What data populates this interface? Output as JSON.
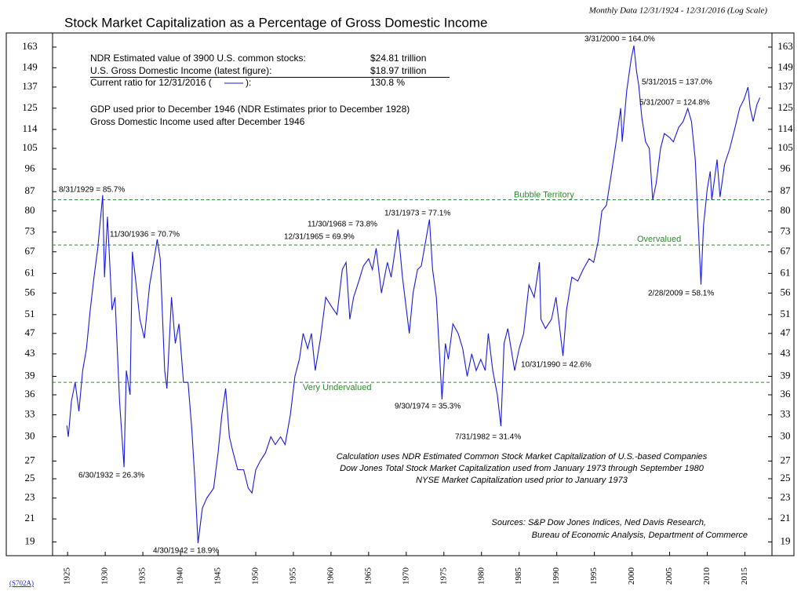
{
  "chart_data": {
    "type": "line",
    "title": "Stock Market Capitalization as a Percentage of Gross Domestic Income",
    "subtitle": "Monthly Data 12/31/1924 - 12/31/2016 (Log Scale)",
    "code": "(S702A)",
    "log_scale": true,
    "xlim": [
      1923,
      2018.6
    ],
    "xticks": [
      1925,
      1930,
      1935,
      1940,
      1945,
      1950,
      1955,
      1960,
      1965,
      1970,
      1975,
      1980,
      1985,
      1990,
      1995,
      2000,
      2005,
      2010,
      2015
    ],
    "ylim": [
      17.9,
      173.3
    ],
    "yticks": [
      163,
      149,
      137,
      125,
      114,
      105,
      96,
      87,
      80,
      73,
      67,
      61,
      56,
      51,
      47,
      43,
      39,
      36,
      33,
      30,
      27,
      25,
      23,
      21,
      19
    ],
    "x": [
      1924.9,
      1925.1,
      1925.5,
      1926,
      1926.5,
      1927,
      1927.5,
      1928,
      1928.5,
      1929.0,
      1929.66,
      1929.9,
      1930.3,
      1930.9,
      1931.3,
      1931.9,
      1932.5,
      1932.8,
      1933.3,
      1933.6,
      1934.0,
      1934.6,
      1935.2,
      1935.9,
      1936.5,
      1936.91,
      1937.3,
      1937.9,
      1938.2,
      1938.8,
      1939.3,
      1939.8,
      1940.4,
      1941.0,
      1941.5,
      1941.9,
      1942.33,
      1942.9,
      1943.5,
      1944.4,
      1945.0,
      1945.5,
      1946.0,
      1946.5,
      1947.0,
      1947.6,
      1948.4,
      1949.0,
      1949.5,
      1950.0,
      1950.6,
      1951.3,
      1952.0,
      1952.6,
      1953.3,
      1953.9,
      1954.6,
      1955.2,
      1955.8,
      1956.3,
      1956.9,
      1957.4,
      1957.9,
      1958.6,
      1959.3,
      1960.0,
      1960.8,
      1961.5,
      1962.0,
      1962.5,
      1963.0,
      1963.7,
      1964.3,
      1965.0,
      1965.5,
      1966.0,
      1966.7,
      1967.5,
      1968.0,
      1968.91,
      1969.5,
      1970.4,
      1970.9,
      1971.5,
      1972.0,
      1973.08,
      1973.5,
      1974.0,
      1974.75,
      1975.2,
      1975.6,
      1976.2,
      1976.9,
      1977.5,
      1978.1,
      1978.7,
      1979.3,
      1979.9,
      1980.5,
      1980.9,
      1981.5,
      1982.1,
      1982.58,
      1983.0,
      1983.5,
      1984.4,
      1985.0,
      1985.6,
      1986.3,
      1987.0,
      1987.7,
      1987.9,
      1988.5,
      1989.3,
      1989.9,
      1990.83,
      1991.3,
      1992.0,
      1992.8,
      1993.5,
      1994.3,
      1994.9,
      1995.5,
      1996.0,
      1996.6,
      1997.3,
      1997.9,
      1998.5,
      1998.7,
      1999.3,
      1999.9,
      2000.25,
      2000.6,
      2000.9,
      2001.3,
      2001.8,
      2002.3,
      2002.75,
      2003.2,
      2003.8,
      2004.3,
      2005.0,
      2005.5,
      2006.2,
      2006.8,
      2007.41,
      2007.9,
      2008.4,
      2008.9,
      2009.16,
      2009.5,
      2010.0,
      2010.4,
      2010.6,
      2011.3,
      2011.7,
      2012.3,
      2013.0,
      2013.7,
      2014.3,
      2014.9,
      2015.41,
      2015.7,
      2016.1,
      2016.6,
      2016.99
    ],
    "series": [
      {
        "color": "#1a1adb",
        "values": [
          31.5,
          30,
          35,
          38,
          33.5,
          40,
          44,
          52,
          60,
          68,
          85.7,
          60,
          78,
          52,
          55,
          35,
          26.3,
          40,
          36,
          67,
          60,
          50,
          46,
          58,
          65,
          70.7,
          65,
          40,
          37,
          55,
          45,
          49,
          38,
          38,
          31,
          25,
          18.9,
          22,
          23,
          24,
          28,
          33,
          37,
          30,
          28,
          26,
          26,
          24,
          23.5,
          26,
          27,
          28,
          30,
          29,
          30,
          29,
          33,
          39,
          42,
          47,
          44,
          47,
          40,
          46,
          55,
          53,
          51,
          62,
          64,
          50,
          55,
          59,
          63,
          65,
          62,
          68,
          56,
          64,
          60,
          73.8,
          60,
          47,
          56,
          62,
          63,
          77.1,
          62,
          55,
          35.3,
          45,
          42,
          49,
          47,
          44,
          39,
          43,
          40,
          42,
          40,
          47,
          40,
          36,
          31.4,
          45,
          48,
          40,
          44,
          47,
          58,
          55,
          64,
          50,
          48,
          50,
          55,
          42.6,
          52,
          60,
          59,
          62,
          65,
          64,
          70,
          80,
          82,
          95,
          108,
          125,
          108,
          135,
          155,
          164.0,
          147,
          138,
          120,
          108,
          105,
          84,
          90,
          105,
          112,
          110,
          108,
          115,
          118,
          124.8,
          118,
          100,
          70,
          58.1,
          75,
          88,
          95,
          84,
          100,
          85,
          98,
          105,
          115,
          125,
          130,
          137.0,
          125,
          118,
          127,
          130.8
        ]
      }
    ],
    "reference_lines": [
      {
        "value": 84,
        "label": "Bubble Territory",
        "color": "#2e8b2e"
      },
      {
        "value": 69,
        "label": "Overvalued",
        "color": "#2e8b2e"
      },
      {
        "value": 38,
        "label": "Very Undervalued",
        "color": "#2e8b2e"
      }
    ],
    "annotations": [
      "3/31/2000 = 164.0%",
      "5/31/2015 = 137.0%",
      "5/31/2007 = 124.8%",
      "8/31/1929 = 85.7%",
      "11/30/1936 = 70.7%",
      "11/30/1968 = 73.8%",
      "12/31/1965 = 69.9%",
      "1/31/1973 = 77.1%",
      "2/28/2009 = 58.1%",
      "10/31/1990 = 42.6%",
      "9/30/1974 = 35.3%",
      "7/31/1982 = 31.4%",
      "6/30/1932 = 26.3%",
      "4/30/1942 = 18.9%"
    ],
    "info": {
      "rows": [
        [
          "NDR Estimated value of 3900 U.S. common stocks:",
          "$24.81 trillion"
        ],
        [
          "U.S. Gross Domestic Income (latest figure):",
          "$18.97 trillion"
        ]
      ],
      "current_before": "Current ratio for 12/31/2016 (",
      "current_after": "):",
      "current_value": "130.8 %",
      "notes": [
        "GDP used prior to December 1946 (NDR Estimates prior to December 1928)",
        "Gross Domestic Income used after December 1946"
      ]
    },
    "method_notes": [
      "Calculation uses NDR Estimated Common Stock Market Capitalization of U.S.-based Companies",
      "Dow Jones Total Stock Market Capitalization used from January 1973 through September 1980",
      "NYSE Market Capitalization used prior to January 1973"
    ],
    "sources": [
      "Sources: S&P Dow Jones Indices, Ned Davis Research,",
      "Bureau of Economic Analysis, Department of Commerce"
    ]
  }
}
